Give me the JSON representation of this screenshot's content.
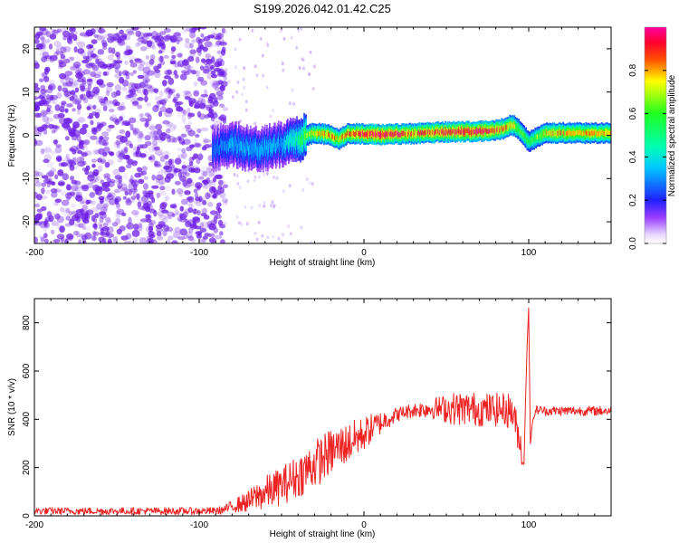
{
  "title": "S199.2026.042.01.42.C25",
  "colors": {
    "snr_line": "#ee2222",
    "scatter": "#7a1fe0",
    "axis": "#000000"
  },
  "chart_data": [
    {
      "type": "heatmap",
      "name": "spectrogram",
      "xlabel": "Height of straight line (km)",
      "ylabel": "Frequency (Hz)",
      "xlim": [
        -200,
        150
      ],
      "ylim": [
        -25,
        25
      ],
      "xticks": [
        -200,
        -100,
        0,
        100
      ],
      "yticks": [
        -20,
        -10,
        0,
        10,
        20
      ],
      "colorbar": {
        "label": "Normalized spectral amplitude",
        "range": [
          0,
          1
        ],
        "ticks": [
          "0.0",
          "0.2",
          "0.4",
          "0.6",
          "0.8"
        ],
        "colormap": "rainbow (violet-blue-cyan-green-yellow-red-magenta)"
      },
      "regions": [
        {
          "x_range": [
            -200,
            -90
          ],
          "description": "broadband noise, amplitude ~0.0-0.1"
        },
        {
          "x_range": [
            -90,
            -35
          ],
          "center_freq_hz": -2,
          "amplitude": 0.25
        },
        {
          "x_range": [
            -35,
            150
          ],
          "center_freq_hz": 0.5,
          "amplitude": 0.8
        }
      ],
      "ridge": {
        "x": [
          -90,
          -80,
          -70,
          -60,
          -50,
          -40,
          -35,
          -30,
          -20,
          -15,
          -10,
          0,
          10,
          20,
          30,
          40,
          50,
          60,
          70,
          80,
          85,
          90,
          95,
          100,
          110,
          120,
          130,
          140,
          150
        ],
        "freq": [
          -3,
          -2,
          -3,
          -3,
          -2,
          -1,
          0,
          0.5,
          0,
          -1,
          0.5,
          0.3,
          0.2,
          0.3,
          0.4,
          0.6,
          0.8,
          0.8,
          0.9,
          1.2,
          1.6,
          2.5,
          1,
          -1.5,
          0.5,
          0.6,
          0.5,
          0.5,
          0.5
        ],
        "amplitude": [
          0.25,
          0.3,
          0.3,
          0.3,
          0.3,
          0.45,
          0.6,
          0.7,
          0.75,
          0.7,
          0.75,
          0.85,
          0.9,
          0.85,
          0.8,
          0.82,
          0.85,
          0.9,
          0.9,
          0.8,
          0.75,
          0.7,
          0.6,
          0.55,
          0.7,
          0.75,
          0.7,
          0.72,
          0.7
        ]
      }
    },
    {
      "type": "line",
      "name": "snr",
      "xlabel": "Height of straight line (km)",
      "ylabel": "SNR (10 * v/v)",
      "xlim": [
        -200,
        150
      ],
      "ylim": [
        0,
        900
      ],
      "xticks": [
        -200,
        -100,
        0,
        100
      ],
      "yticks": [
        0,
        200,
        400,
        600,
        800
      ],
      "series": [
        {
          "name": "SNR",
          "x": [
            -200,
            -180,
            -160,
            -140,
            -120,
            -100,
            -90,
            -85,
            -80,
            -75,
            -70,
            -65,
            -60,
            -55,
            -50,
            -45,
            -40,
            -35,
            -30,
            -25,
            -20,
            -15,
            -10,
            -5,
            0,
            5,
            10,
            15,
            20,
            25,
            30,
            35,
            40,
            45,
            50,
            55,
            60,
            65,
            70,
            75,
            80,
            85,
            90,
            95,
            97,
            99,
            100,
            101,
            103,
            105,
            110,
            120,
            130,
            140,
            150
          ],
          "y": [
            20,
            20,
            20,
            20,
            20,
            20,
            20,
            25,
            40,
            50,
            60,
            80,
            95,
            110,
            125,
            145,
            165,
            190,
            215,
            240,
            265,
            285,
            300,
            320,
            340,
            365,
            385,
            405,
            420,
            430,
            438,
            442,
            445,
            445,
            445,
            445,
            445,
            445,
            440,
            440,
            440,
            440,
            435,
            300,
            200,
            700,
            870,
            300,
            420,
            440,
            435,
            435,
            435,
            435,
            435
          ],
          "noise_amplitude": [
            15,
            15,
            15,
            15,
            15,
            15,
            15,
            18,
            25,
            35,
            45,
            60,
            70,
            75,
            80,
            85,
            90,
            95,
            100,
            100,
            95,
            90,
            85,
            80,
            70,
            60,
            50,
            40,
            30,
            30,
            30,
            35,
            40,
            50,
            60,
            70,
            70,
            70,
            70,
            70,
            70,
            70,
            80,
            60,
            40,
            0,
            0,
            0,
            25,
            20,
            20,
            20,
            20,
            20,
            20
          ]
        }
      ]
    }
  ]
}
